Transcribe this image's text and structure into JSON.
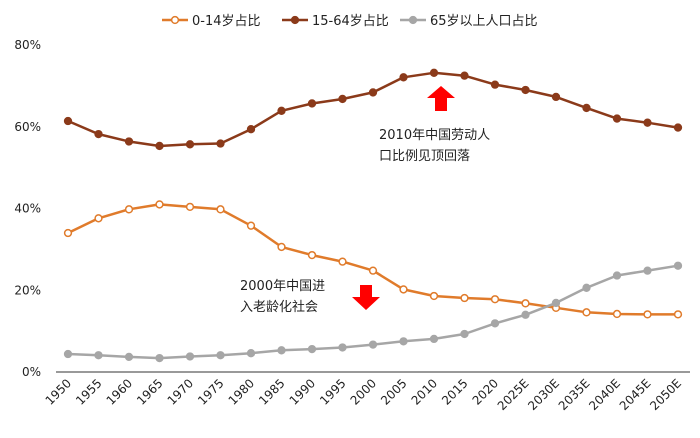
{
  "chart_data": {
    "type": "line",
    "categories": [
      "1950",
      "1955",
      "1960",
      "1965",
      "1970",
      "1975",
      "1980",
      "1985",
      "1990",
      "1995",
      "2000",
      "2005",
      "2010",
      "2015",
      "2020",
      "2025E",
      "2030E",
      "2035E",
      "2040E",
      "2045E",
      "2050E"
    ],
    "series": [
      {
        "name": "0-14岁占比",
        "color": "#E07B2B",
        "marker_fill": "#ffffff",
        "values": [
          34.0,
          37.6,
          39.8,
          41.0,
          40.4,
          39.8,
          35.8,
          30.6,
          28.6,
          27.0,
          24.8,
          20.2,
          18.6,
          18.1,
          17.8,
          16.8,
          15.7,
          14.6,
          14.2,
          14.1,
          14.1
        ]
      },
      {
        "name": "15-64岁占比",
        "color": "#8B3A1A",
        "marker_fill": "#8B3A1A",
        "values": [
          61.4,
          58.2,
          56.4,
          55.3,
          55.7,
          55.9,
          59.4,
          63.9,
          65.7,
          66.8,
          68.4,
          72.1,
          73.2,
          72.5,
          70.3,
          69.0,
          67.3,
          64.6,
          62.0,
          61.0,
          59.8
        ]
      },
      {
        "name": "65岁以上人口占比",
        "color": "#A6A6A6",
        "marker_fill": "#A6A6A6",
        "values": [
          4.4,
          4.1,
          3.7,
          3.4,
          3.8,
          4.1,
          4.6,
          5.3,
          5.6,
          6.0,
          6.7,
          7.5,
          8.1,
          9.3,
          11.9,
          14.0,
          16.9,
          20.6,
          23.6,
          24.8,
          26.0
        ]
      }
    ],
    "yticks": [
      "0%",
      "20%",
      "40%",
      "60%",
      "80%"
    ],
    "ylim": [
      0,
      80
    ],
    "legend_position": "top",
    "grid": false,
    "annotations": [
      {
        "lines": [
          "2010年中国劳动人",
          "口比例见顶回落"
        ],
        "arrow": "up",
        "arrow_color": "#FF0000",
        "arrow_at": "2010"
      },
      {
        "lines": [
          "2000年中国进",
          "入老龄化社会"
        ],
        "arrow": "down",
        "arrow_color": "#FF0000",
        "arrow_at": "2000"
      }
    ]
  }
}
